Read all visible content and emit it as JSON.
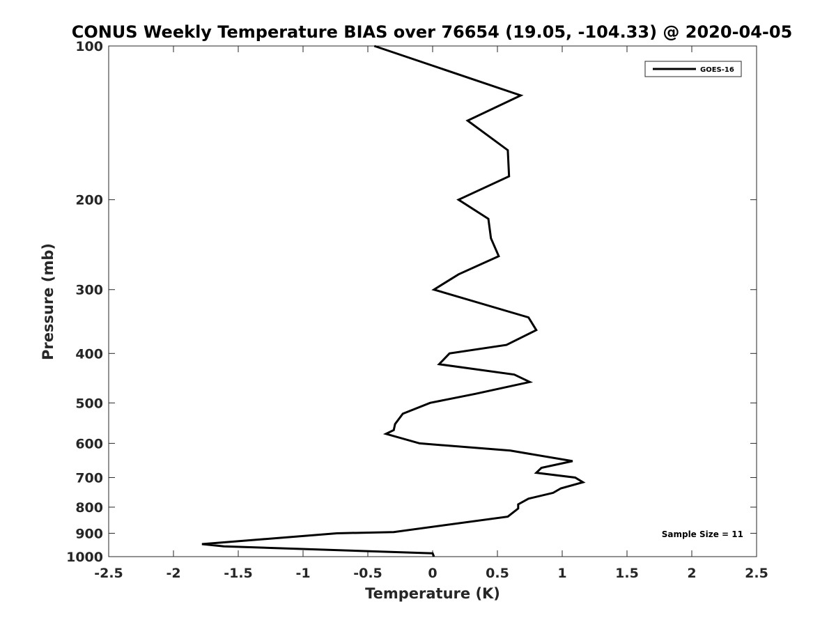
{
  "chart_data": {
    "type": "line",
    "title": "CONUS Weekly Temperature BIAS over 76654 (19.05, -104.33) @ 2020-04-05",
    "xlabel": "Temperature (K)",
    "ylabel": "Pressure (mb)",
    "xlim": [
      -2.5,
      2.5
    ],
    "ylim": [
      100,
      1000
    ],
    "y_scale": "log",
    "y_reversed": true,
    "x_ticks": [
      -2.5,
      -2,
      -1.5,
      -1,
      -0.5,
      0,
      0.5,
      1,
      1.5,
      2,
      2.5
    ],
    "x_tick_labels": [
      "-2.5",
      "-2",
      "-1.5",
      "-1",
      "-0.5",
      "0",
      "0.5",
      "1",
      "1.5",
      "2",
      "2.5"
    ],
    "y_ticks": [
      100,
      200,
      300,
      400,
      500,
      600,
      700,
      800,
      900,
      1000
    ],
    "y_tick_labels": [
      "100",
      "200",
      "300",
      "400",
      "500",
      "600",
      "700",
      "800",
      "900",
      "1000"
    ],
    "grid": false,
    "legend": {
      "position": "top-right",
      "entries": [
        "GOES-16"
      ]
    },
    "annotation": "Sample Size = 11",
    "series": [
      {
        "name": "GOES-16",
        "color": "#000000",
        "x": [
          -0.45,
          0.68,
          0.27,
          0.58,
          0.59,
          0.2,
          0.43,
          0.45,
          0.51,
          0.2,
          0.01,
          0.74,
          0.8,
          0.57,
          0.13,
          0.05,
          0.63,
          0.75,
          0.33,
          -0.02,
          -0.23,
          -0.29,
          -0.3,
          -0.36,
          -0.1,
          0.6,
          1.08,
          0.84,
          0.8,
          1.1,
          1.16,
          0.99,
          0.93,
          0.74,
          0.66,
          0.66,
          0.58,
          -0.3,
          -0.74,
          -1.78,
          -1.61,
          0.0,
          0.01
        ],
        "y": [
          100,
          125,
          140,
          160,
          180,
          200,
          218,
          238,
          258,
          280,
          300,
          340,
          360,
          385,
          400,
          420,
          440,
          455,
          480,
          500,
          525,
          550,
          565,
          575,
          600,
          620,
          650,
          670,
          685,
          700,
          715,
          735,
          750,
          770,
          790,
          805,
          835,
          895,
          900,
          945,
          955,
          985,
          1000
        ]
      }
    ]
  }
}
